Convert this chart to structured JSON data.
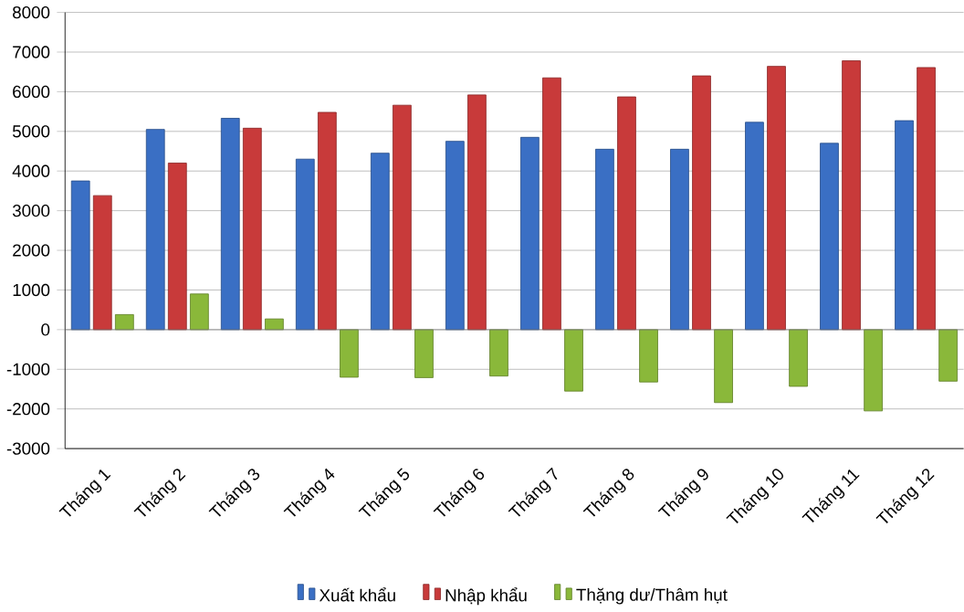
{
  "chart_data": {
    "type": "bar",
    "categories": [
      "Tháng 1",
      "Tháng 2",
      "Tháng 3",
      "Tháng 4",
      "Tháng 5",
      "Tháng 6",
      "Tháng 7",
      "Tháng 8",
      "Tháng 9",
      "Tháng 10",
      "Tháng 11",
      "Tháng 12"
    ],
    "series": [
      {
        "name": "Xuất khẩu",
        "color": "#3a6fc4",
        "values": [
          3750,
          5050,
          5330,
          4300,
          4450,
          4750,
          4850,
          4550,
          4550,
          5230,
          4700,
          5270
        ]
      },
      {
        "name": "Nhập khẩu",
        "color": "#c83a3a",
        "values": [
          3380,
          4200,
          5080,
          5480,
          5660,
          5920,
          6350,
          5870,
          6400,
          6640,
          6780,
          6610
        ]
      },
      {
        "name": "Thặng dư/Thâm hụt",
        "color": "#8ab83a",
        "values": [
          380,
          900,
          270,
          -1200,
          -1210,
          -1170,
          -1550,
          -1320,
          -1840,
          -1430,
          -2050,
          -1300
        ]
      }
    ],
    "ylim": [
      -3000,
      8000
    ],
    "yticks": [
      -3000,
      -2000,
      -1000,
      0,
      1000,
      2000,
      3000,
      4000,
      5000,
      6000,
      7000,
      8000
    ],
    "grid": "y",
    "legend": "bottom"
  }
}
